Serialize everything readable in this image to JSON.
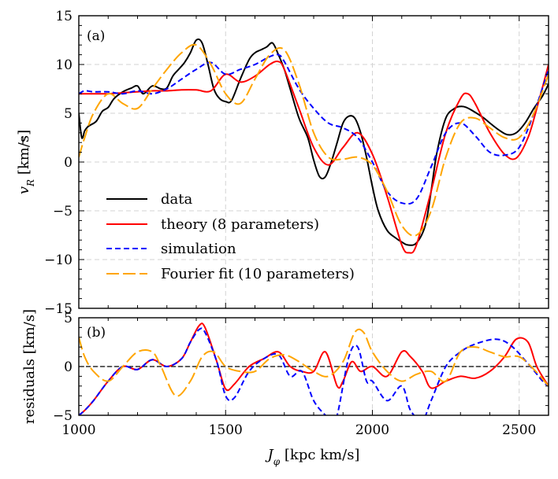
{
  "chart_data": [
    {
      "type": "line",
      "panel_label": "(a)",
      "ylabel_main": "v",
      "ylabel_sub": "R",
      "ylabel_unit": " [km/s]",
      "xlim": [
        1000,
        2600
      ],
      "ylim": [
        -15,
        15
      ],
      "xticks": [
        1000,
        1500,
        2000,
        2500
      ],
      "yticks": [
        -15,
        -10,
        -5,
        0,
        5,
        10,
        15
      ],
      "ytick_labels": [
        "−15",
        "−10",
        "−5",
        "0",
        "5",
        "10",
        "15"
      ],
      "grid": true,
      "legend_position": "lower-left",
      "series": [
        {
          "name": "data",
          "color": "#000000",
          "dash": "solid",
          "x": [
            1000,
            1010,
            1020,
            1030,
            1040,
            1060,
            1080,
            1100,
            1120,
            1150,
            1180,
            1200,
            1220,
            1250,
            1280,
            1300,
            1320,
            1340,
            1360,
            1380,
            1400,
            1420,
            1440,
            1460,
            1480,
            1500,
            1520,
            1550,
            1580,
            1600,
            1620,
            1640,
            1660,
            1680,
            1700,
            1720,
            1750,
            1780,
            1800,
            1820,
            1840,
            1860,
            1880,
            1900,
            1920,
            1940,
            1960,
            1980,
            2000,
            2020,
            2050,
            2080,
            2100,
            2120,
            2150,
            2180,
            2200,
            2220,
            2250,
            2280,
            2300,
            2320,
            2350,
            2380,
            2400,
            2430,
            2460,
            2490,
            2520,
            2550,
            2580,
            2600
          ],
          "y": [
            5,
            2.5,
            3.2,
            3.6,
            3.8,
            4.2,
            5.2,
            5.6,
            6.5,
            7.2,
            7.6,
            7.8,
            7.0,
            7.8,
            7.5,
            7.6,
            8.8,
            9.5,
            10.2,
            11.2,
            12.5,
            12.2,
            10.0,
            7.5,
            6.5,
            6.2,
            6.3,
            8.5,
            10.5,
            11.2,
            11.5,
            11.8,
            12.2,
            11.0,
            9.5,
            7.5,
            4.5,
            2.5,
            0.2,
            -1.5,
            -1.5,
            0.0,
            2.0,
            4.0,
            4.7,
            4.5,
            3.0,
            0.5,
            -2.5,
            -5.0,
            -7.0,
            -7.8,
            -8.2,
            -8.5,
            -8.3,
            -6.5,
            -3.0,
            1.0,
            4.5,
            5.5,
            5.7,
            5.6,
            5.1,
            4.5,
            4.0,
            3.3,
            2.8,
            3.0,
            4.0,
            5.5,
            6.8,
            8.0
          ]
        },
        {
          "name": "theory (8 parameters)",
          "color": "#ff0000",
          "dash": "solid",
          "x": [
            1000,
            1050,
            1100,
            1150,
            1200,
            1250,
            1300,
            1350,
            1400,
            1450,
            1500,
            1550,
            1600,
            1650,
            1680,
            1700,
            1750,
            1800,
            1850,
            1900,
            1950,
            2000,
            2050,
            2100,
            2125,
            2150,
            2200,
            2250,
            2300,
            2325,
            2350,
            2400,
            2450,
            2490,
            2530,
            2560,
            2600
          ],
          "y": [
            7.0,
            7.0,
            7.0,
            7.1,
            7.2,
            7.3,
            7.3,
            7.4,
            7.4,
            7.3,
            9.0,
            8.2,
            8.8,
            10.0,
            10.3,
            9.5,
            5.5,
            1.5,
            -0.3,
            1.5,
            3.0,
            0.8,
            -3.5,
            -8.5,
            -9.3,
            -8.5,
            -3.0,
            3.0,
            6.5,
            7.0,
            6.0,
            3.0,
            0.8,
            0.4,
            2.5,
            5.5,
            10.0
          ]
        },
        {
          "name": "simulation",
          "color": "#0000ff",
          "dash": "7,4",
          "x": [
            1000,
            1020,
            1050,
            1100,
            1150,
            1200,
            1250,
            1300,
            1350,
            1400,
            1450,
            1500,
            1550,
            1600,
            1650,
            1680,
            1700,
            1750,
            1800,
            1850,
            1900,
            1950,
            2000,
            2050,
            2100,
            2150,
            2200,
            2250,
            2300,
            2350,
            2400,
            2450,
            2500,
            2550,
            2600
          ],
          "y": [
            7.0,
            7.3,
            7.2,
            7.2,
            7.0,
            7.3,
            7.0,
            7.5,
            8.5,
            9.5,
            10.2,
            9.0,
            9.5,
            10.0,
            10.8,
            11.0,
            10.3,
            7.5,
            5.5,
            4.0,
            3.5,
            2.5,
            0.0,
            -3.0,
            -4.2,
            -3.8,
            -0.5,
            3.0,
            4.0,
            2.7,
            1.0,
            0.7,
            1.5,
            5.0,
            9.5
          ]
        },
        {
          "name": "Fourier fit (10 parameters)",
          "color": "#ffa500",
          "dash": "16,5",
          "x": [
            1000,
            1020,
            1050,
            1100,
            1150,
            1200,
            1250,
            1300,
            1350,
            1400,
            1450,
            1500,
            1550,
            1600,
            1650,
            1700,
            1750,
            1800,
            1850,
            1900,
            1950,
            2000,
            2050,
            2100,
            2150,
            2200,
            2250,
            2300,
            2350,
            2400,
            2450,
            2500,
            2550,
            2600
          ],
          "y": [
            0.5,
            2.5,
            5.0,
            7.0,
            6.0,
            5.5,
            7.5,
            9.5,
            11.2,
            12.0,
            10.0,
            7.0,
            6.0,
            8.5,
            11.0,
            11.5,
            8.0,
            3.0,
            0.5,
            0.3,
            0.5,
            -0.3,
            -3.0,
            -6.5,
            -7.5,
            -5.0,
            0.5,
            4.0,
            4.5,
            3.5,
            2.5,
            2.5,
            5.0,
            9.0
          ]
        }
      ]
    },
    {
      "type": "line",
      "panel_label": "(b)",
      "ylabel": "residuals [km/s]",
      "xlabel_main": "J",
      "xlabel_sub": "φ",
      "xlabel_unit": " [kpc km/s]",
      "xlim": [
        1000,
        2600
      ],
      "ylim": [
        -5,
        5
      ],
      "xticks": [
        1000,
        1500,
        2000,
        2500
      ],
      "yticks": [
        -5,
        0,
        5
      ],
      "ytick_labels": [
        "−5",
        "0",
        "5"
      ],
      "reference_line_y": 0,
      "grid": true,
      "series": [
        {
          "name": "theory (8 parameters)",
          "color": "#ff0000",
          "dash": "solid",
          "x": [
            1000,
            1020,
            1050,
            1100,
            1150,
            1200,
            1250,
            1300,
            1350,
            1380,
            1410,
            1430,
            1470,
            1500,
            1530,
            1580,
            1630,
            1680,
            1720,
            1760,
            1800,
            1840,
            1880,
            1900,
            1930,
            1960,
            2000,
            2050,
            2100,
            2130,
            2170,
            2200,
            2250,
            2300,
            2350,
            2400,
            2450,
            2490,
            2530,
            2560,
            2600
          ],
          "y": [
            -5.0,
            -4.5,
            -3.5,
            -1.5,
            0.0,
            -0.3,
            0.7,
            0.0,
            0.8,
            2.5,
            4.2,
            4.0,
            0.5,
            -2.3,
            -1.8,
            0.0,
            0.8,
            1.5,
            0.0,
            -0.5,
            -0.5,
            1.5,
            -2.0,
            -1.5,
            0.5,
            -0.5,
            0.0,
            -1.0,
            1.5,
            1.0,
            -0.5,
            -2.2,
            -1.5,
            -1.0,
            -1.2,
            -0.5,
            1.0,
            2.8,
            2.5,
            0.0,
            -2.0
          ]
        },
        {
          "name": "simulation",
          "color": "#0000ff",
          "dash": "7,4",
          "x": [
            1000,
            1020,
            1050,
            1100,
            1150,
            1200,
            1250,
            1300,
            1350,
            1380,
            1410,
            1430,
            1470,
            1500,
            1530,
            1580,
            1630,
            1680,
            1720,
            1760,
            1800,
            1840,
            1860,
            1880,
            1920,
            1950,
            1980,
            2000,
            2050,
            2100,
            2130,
            2170,
            2200,
            2250,
            2300,
            2350,
            2420,
            2470,
            2530,
            2580,
            2600
          ],
          "y": [
            -5.0,
            -4.5,
            -3.5,
            -1.5,
            0.0,
            -0.3,
            0.7,
            0.0,
            0.8,
            2.5,
            3.8,
            3.5,
            0.5,
            -3.0,
            -3.2,
            -0.5,
            0.8,
            1.2,
            -1.0,
            -0.5,
            -3.5,
            -5.0,
            -5.5,
            -5.0,
            1.0,
            2.0,
            -1.5,
            -1.5,
            -3.5,
            -2.0,
            -4.5,
            -5.5,
            -3.5,
            0.0,
            1.5,
            2.3,
            2.8,
            2.2,
            0.3,
            -1.5,
            -2.0
          ]
        },
        {
          "name": "Fourier fit (10 parameters)",
          "color": "#ffa500",
          "dash": "16,5",
          "x": [
            1000,
            1020,
            1050,
            1100,
            1150,
            1200,
            1250,
            1280,
            1330,
            1380,
            1420,
            1460,
            1500,
            1550,
            1600,
            1650,
            1700,
            1750,
            1800,
            1850,
            1900,
            1940,
            1970,
            2000,
            2050,
            2100,
            2150,
            2200,
            2250,
            2300,
            2350,
            2400,
            2450,
            2500,
            2550,
            2600
          ],
          "y": [
            3.0,
            1.0,
            -0.5,
            -1.5,
            0.0,
            1.5,
            1.5,
            0.0,
            -3.0,
            -1.5,
            1.0,
            1.5,
            0.0,
            -0.5,
            -0.5,
            0.8,
            1.2,
            0.5,
            -0.5,
            -1.0,
            0.5,
            3.5,
            3.5,
            1.5,
            -0.5,
            -1.5,
            -0.8,
            -0.5,
            -1.5,
            1.5,
            2.0,
            1.5,
            1.0,
            1.0,
            -0.3,
            -2.0
          ]
        }
      ]
    }
  ]
}
